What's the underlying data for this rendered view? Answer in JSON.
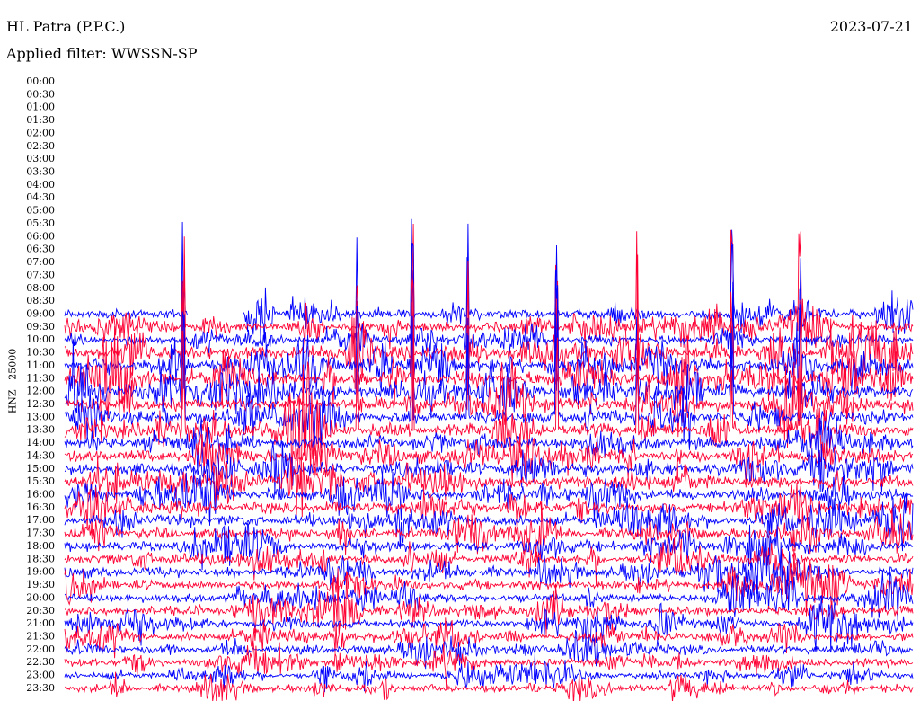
{
  "header": {
    "station": "HL Patra (P.P.C.)",
    "date": "2023-07-21",
    "filter": "Applied filter: WWSSN-SP"
  },
  "chart_data": {
    "type": "line",
    "title": "HL Patra (P.P.C.)",
    "ylabel": "HNZ - 25000",
    "row_labels": [
      "00:00",
      "00:30",
      "01:00",
      "01:30",
      "02:00",
      "02:30",
      "03:00",
      "03:30",
      "04:00",
      "04:30",
      "05:00",
      "05:30",
      "06:00",
      "06:30",
      "07:00",
      "07:30",
      "08:00",
      "08:30",
      "09:00",
      "09:30",
      "10:00",
      "10:30",
      "11:00",
      "11:30",
      "12:00",
      "12:30",
      "13:00",
      "13:30",
      "14:00",
      "14:30",
      "15:00",
      "15:30",
      "16:00",
      "16:30",
      "17:00",
      "17:30",
      "18:00",
      "18:30",
      "19:00",
      "19:30",
      "20:00",
      "20:30",
      "21:00",
      "21:30",
      "22:00",
      "22:30",
      "23:00",
      "23:30"
    ],
    "first_trace_row": "09:00",
    "first_trace_start_fraction": 0.0,
    "gap_fraction": [
      0.145,
      0.21
    ],
    "colors": [
      "#0000ff",
      "#ff0033"
    ],
    "spike_fractions": [
      0.14,
      0.345,
      0.41,
      0.475,
      0.58,
      0.675,
      0.787,
      0.867
    ],
    "grid": false
  }
}
